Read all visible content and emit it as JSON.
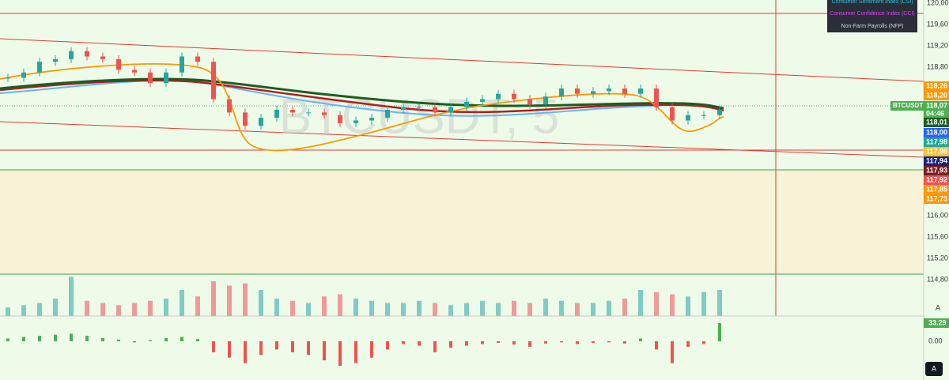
{
  "watermark": "BTCUSDT, 5",
  "menu": [
    "Consumer Sentiment Index (CSI)",
    "Consumer Confidence Index (CCI)",
    "Non-Farm Payrolls (NFP)"
  ],
  "menu_colors": [
    "#26c6da",
    "#e040fb",
    "#d1d4dc"
  ],
  "price_axis": [
    {
      "value": 120000,
      "label": "120,00"
    },
    {
      "value": 119600,
      "label": "119,60"
    },
    {
      "value": 119200,
      "label": "119,20"
    },
    {
      "value": 118800,
      "label": "118,80"
    }
  ],
  "lower_axis": [
    "116,00",
    "115,60",
    "115,20",
    "114,80"
  ],
  "price_tags": [
    {
      "value": 118260,
      "label": "118,26",
      "color": "#ff9800"
    },
    {
      "value": 118200,
      "label": "118,20",
      "color": "#ff9800"
    },
    {
      "value": 118010,
      "label": "118,01",
      "color": "#1b5e20"
    },
    {
      "value": 118000,
      "label": "118,00",
      "color": "#2962ff"
    },
    {
      "value": 117980,
      "label": "117,98",
      "color": "#26a69a"
    },
    {
      "value": 117960,
      "label": "117,96",
      "color": "#fbc02d"
    },
    {
      "value": 117940,
      "label": "117,94",
      "color": "#1a237e"
    },
    {
      "value": 117930,
      "label": "117,93",
      "color": "#7b1f1f"
    },
    {
      "value": 117920,
      "label": "117,92",
      "color": "#ef5350"
    },
    {
      "value": 117850,
      "label": "117,85",
      "color": "#ff9800"
    },
    {
      "value": 117730,
      "label": "117,73",
      "color": "#ff9800"
    }
  ],
  "symbol_tag": {
    "name": "BTCUSDT",
    "price": "118,07",
    "countdown": "04:46"
  },
  "closes": [
    118600,
    118700,
    118900,
    118950,
    119100,
    119000,
    118950,
    118750,
    118700,
    118500,
    118700,
    119000,
    118900,
    118200,
    117950,
    117700,
    117850,
    118000,
    117950,
    117950,
    117900,
    117750,
    117800,
    117850,
    118000,
    118050,
    118050,
    117950,
    118050,
    118150,
    118200,
    118300,
    118200,
    118100,
    118250,
    118400,
    118300,
    118350,
    118400,
    118300,
    118400,
    118050,
    117800,
    117900,
    117900,
    118000
  ],
  "volumes": [
    20,
    25,
    30,
    40,
    90,
    35,
    30,
    25,
    30,
    35,
    40,
    60,
    45,
    80,
    70,
    75,
    60,
    40,
    35,
    30,
    45,
    50,
    40,
    35,
    30,
    30,
    35,
    30,
    25,
    30,
    35,
    30,
    35,
    30,
    40,
    35,
    30,
    30,
    35,
    40,
    60,
    55,
    50,
    45,
    55,
    60
  ],
  "oscillator": [
    5,
    8,
    10,
    12,
    14,
    10,
    6,
    3,
    -2,
    2,
    6,
    8,
    4,
    -20,
    -30,
    -40,
    -25,
    -15,
    -20,
    -25,
    -35,
    -45,
    -40,
    -30,
    -15,
    -5,
    -8,
    -20,
    -12,
    -8,
    -5,
    -3,
    -6,
    -10,
    -4,
    -2,
    -5,
    -3,
    -2,
    -4,
    5,
    -15,
    -40,
    -10,
    -5,
    33.29
  ],
  "osc_axis": [
    33.29,
    0
  ],
  "osc_axis_labels": [
    "33.29",
    "0.00"
  ],
  "pane_label": "A"
}
